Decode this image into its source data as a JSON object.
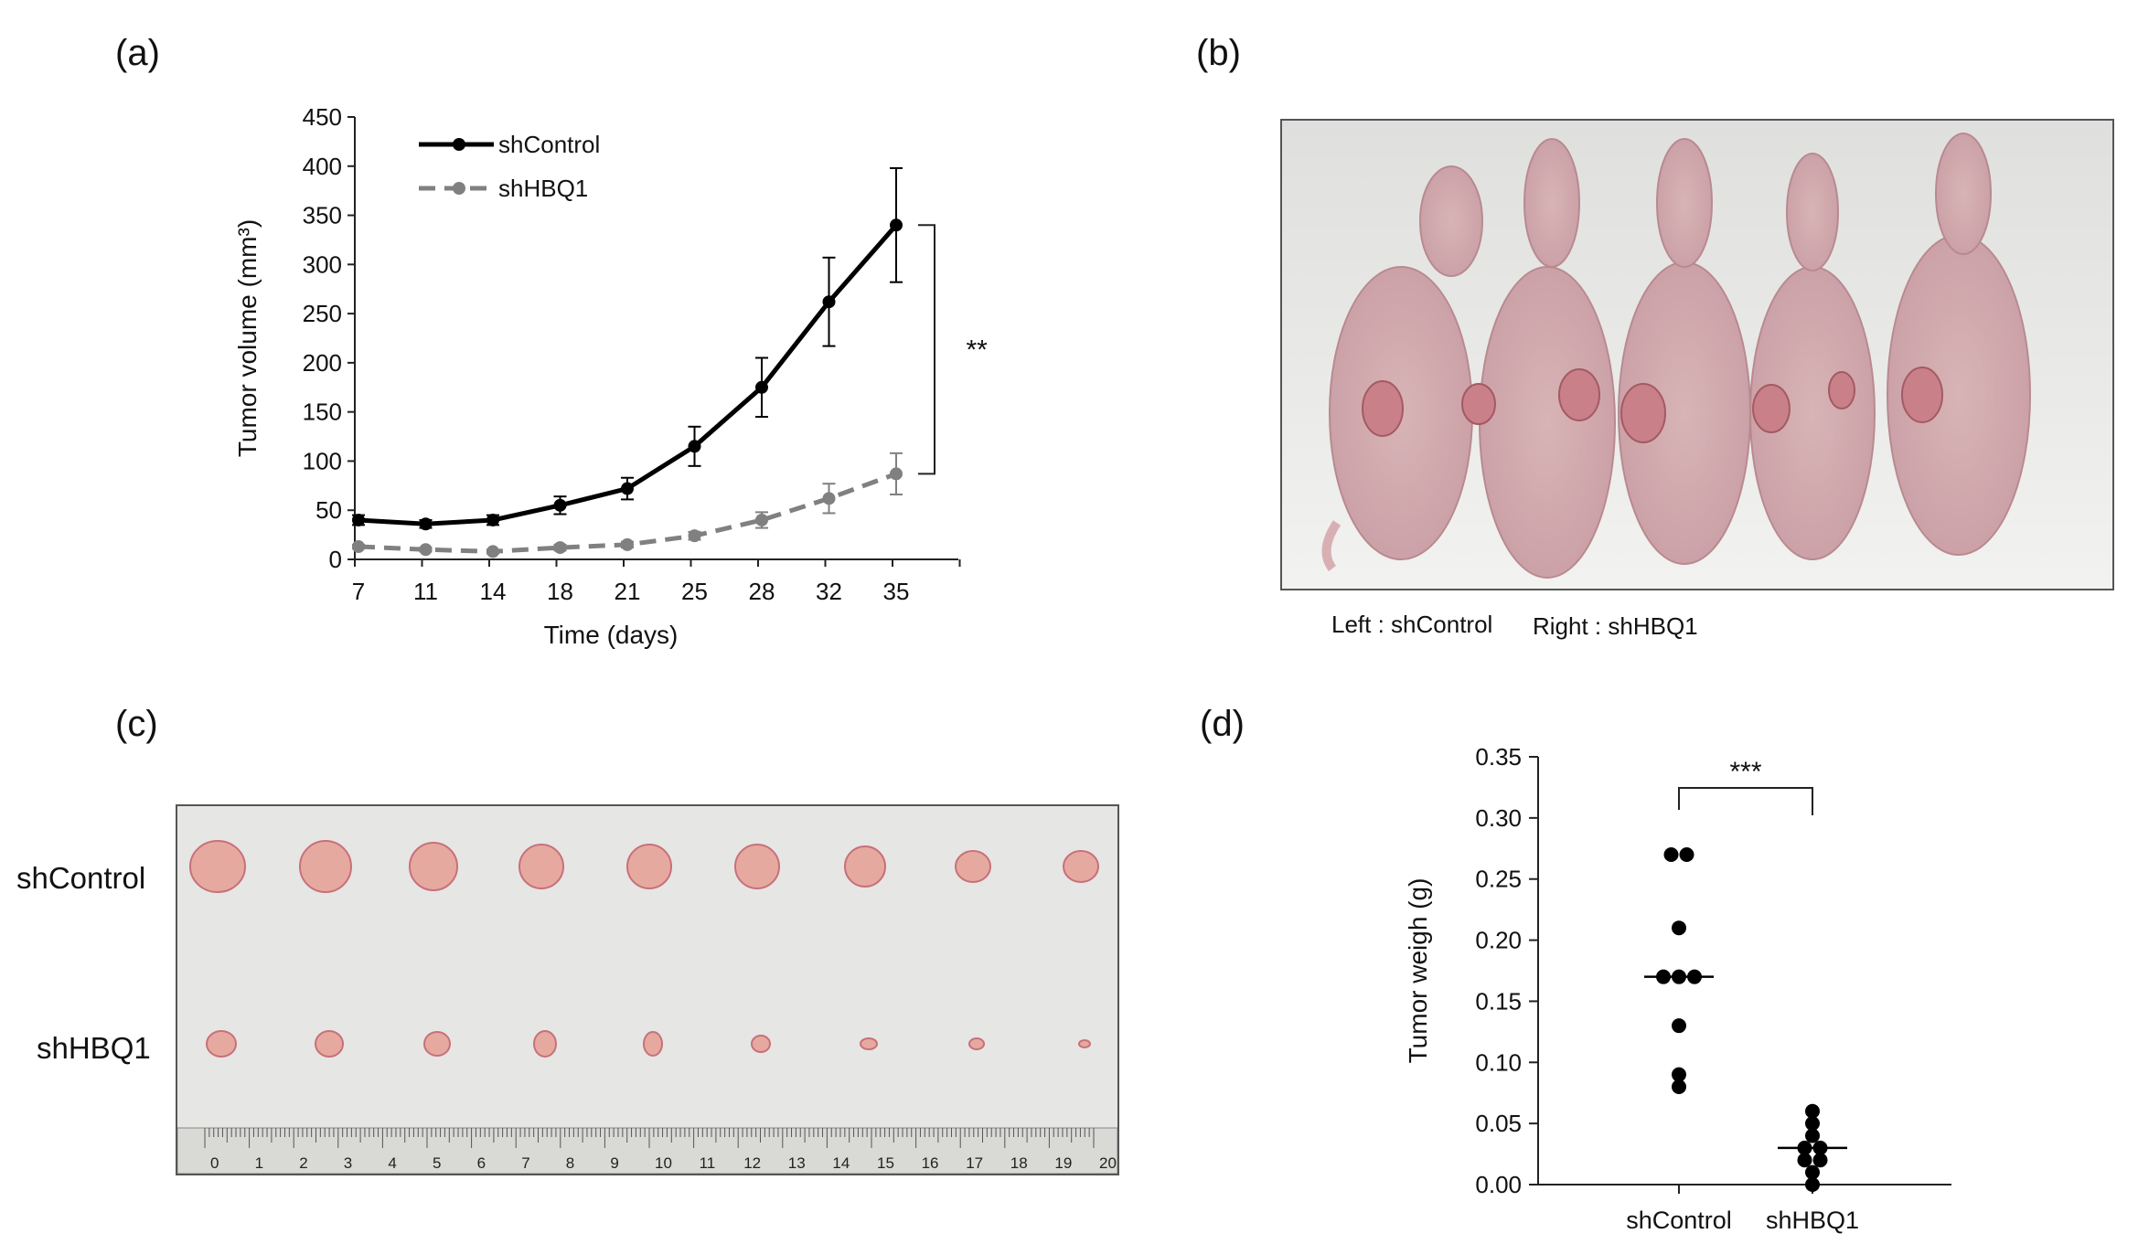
{
  "panels": {
    "a": {
      "label": "(a)"
    },
    "b": {
      "label": "(b)",
      "caption_left": "Left : shControl",
      "caption_right": "Right : shHBQ1"
    },
    "c": {
      "label": "(c)",
      "row1": "shControl",
      "row2": "shHBQ1",
      "ruler_ticks": [
        "0",
        "1",
        "2",
        "3",
        "4",
        "5",
        "6",
        "7",
        "8",
        "9",
        "10",
        "11",
        "12",
        "13",
        "14",
        "15",
        "16",
        "17",
        "18",
        "19",
        "20"
      ]
    },
    "d": {
      "label": "(d)"
    }
  },
  "chart_data": [
    {
      "panel": "a",
      "type": "line",
      "title": "",
      "xlabel": "Time (days)",
      "ylabel": "Tumor volume (mm³)",
      "x": [
        7,
        11,
        14,
        18,
        21,
        25,
        28,
        32,
        35
      ],
      "xticks": [
        "7",
        "11",
        "14",
        "18",
        "21",
        "25",
        "28",
        "32",
        "35"
      ],
      "ylim": [
        0,
        450
      ],
      "yticks": [
        0,
        50,
        100,
        150,
        200,
        250,
        300,
        350,
        400,
        450
      ],
      "legend": "top-left",
      "significance": "***",
      "series": [
        {
          "name": "shControl",
          "color": "#000000",
          "dash": false,
          "values": [
            40,
            36,
            40,
            55,
            72,
            115,
            175,
            262,
            340
          ],
          "errors": [
            5,
            4,
            5,
            9,
            11,
            20,
            30,
            45,
            58
          ]
        },
        {
          "name": "shHBQ1",
          "color": "#808080",
          "dash": true,
          "values": [
            13,
            10,
            8,
            12,
            15,
            24,
            40,
            62,
            87
          ],
          "errors": [
            2,
            2,
            2,
            3,
            3,
            4,
            8,
            15,
            21
          ]
        }
      ]
    },
    {
      "panel": "d",
      "type": "scatter",
      "title": "",
      "xlabel": "",
      "ylabel": "Tumor weigh (g)",
      "categories": [
        "shControl",
        "shHBQ1"
      ],
      "ylim": [
        0,
        0.35
      ],
      "yticks": [
        "0.00",
        "0.05",
        "0.10",
        "0.15",
        "0.20",
        "0.25",
        "0.30",
        "0.35"
      ],
      "significance": "***",
      "groups": [
        {
          "category": "shControl",
          "median": 0.17,
          "points": [
            0.27,
            0.27,
            0.21,
            0.17,
            0.17,
            0.17,
            0.13,
            0.09,
            0.08
          ]
        },
        {
          "category": "shHBQ1",
          "median": 0.03,
          "points": [
            0.06,
            0.05,
            0.04,
            0.03,
            0.03,
            0.02,
            0.02,
            0.01,
            0.0
          ]
        }
      ]
    }
  ]
}
